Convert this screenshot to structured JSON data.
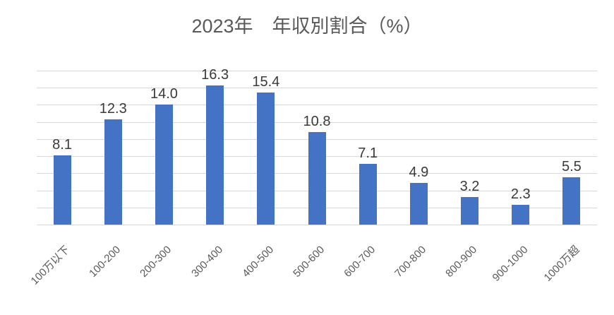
{
  "chart_data": {
    "type": "bar",
    "title": "2023年　年収別割合（%）",
    "categories": [
      "100万以下",
      "100-200",
      "200-300",
      "300-400",
      "400-500",
      "500-600",
      "600-700",
      "700-800",
      "800-900",
      "900-1000",
      "1000万超"
    ],
    "values": [
      8.1,
      12.3,
      14.0,
      16.3,
      15.4,
      10.8,
      7.1,
      4.9,
      3.2,
      2.3,
      5.5
    ],
    "labels": [
      "8.1",
      "12.3",
      "14.0",
      "16.3",
      "15.4",
      "10.8",
      "7.1",
      "4.9",
      "3.2",
      "2.3",
      "5.5"
    ],
    "xlabel": "",
    "ylabel": "",
    "ylim": [
      0,
      18
    ],
    "gridline_step": 2,
    "grid": true,
    "legend": "none",
    "y_axis_labels_visible": false,
    "category_label_rotation_deg": -45,
    "colors": {
      "bar": "#4472C4",
      "gridline": "#D9D9D9",
      "title": "#595959",
      "category_label": "#595959",
      "data_label": "#3A3A3A",
      "background": "#FFFFFF"
    }
  }
}
